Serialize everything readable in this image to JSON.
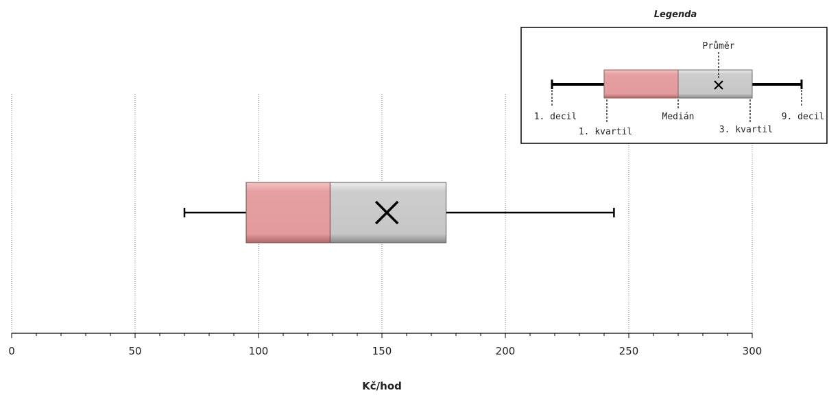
{
  "chart_data": {
    "type": "boxplot",
    "xlabel": "Kč/hod",
    "xlim": [
      0,
      300
    ],
    "xticks": [
      0,
      50,
      100,
      150,
      200,
      250,
      300
    ],
    "grid": true,
    "series": [
      {
        "decile1": 70,
        "quartile1": 95,
        "median": 129,
        "mean": 152,
        "quartile3": 176,
        "decile9": 244
      }
    ],
    "legend": {
      "title": "Legenda",
      "placement": "top-right",
      "labels": {
        "mean": "Průměr",
        "decile1": "1. decil",
        "quartile1": "1. kvartil",
        "median": "Medián",
        "quartile3": "3. kvartil",
        "decile9": "9. decil"
      }
    },
    "colors": {
      "lower_box": "#e39a9c",
      "upper_box": "#c8c8c8",
      "whisker": "#000000",
      "grid": "#777777"
    }
  }
}
